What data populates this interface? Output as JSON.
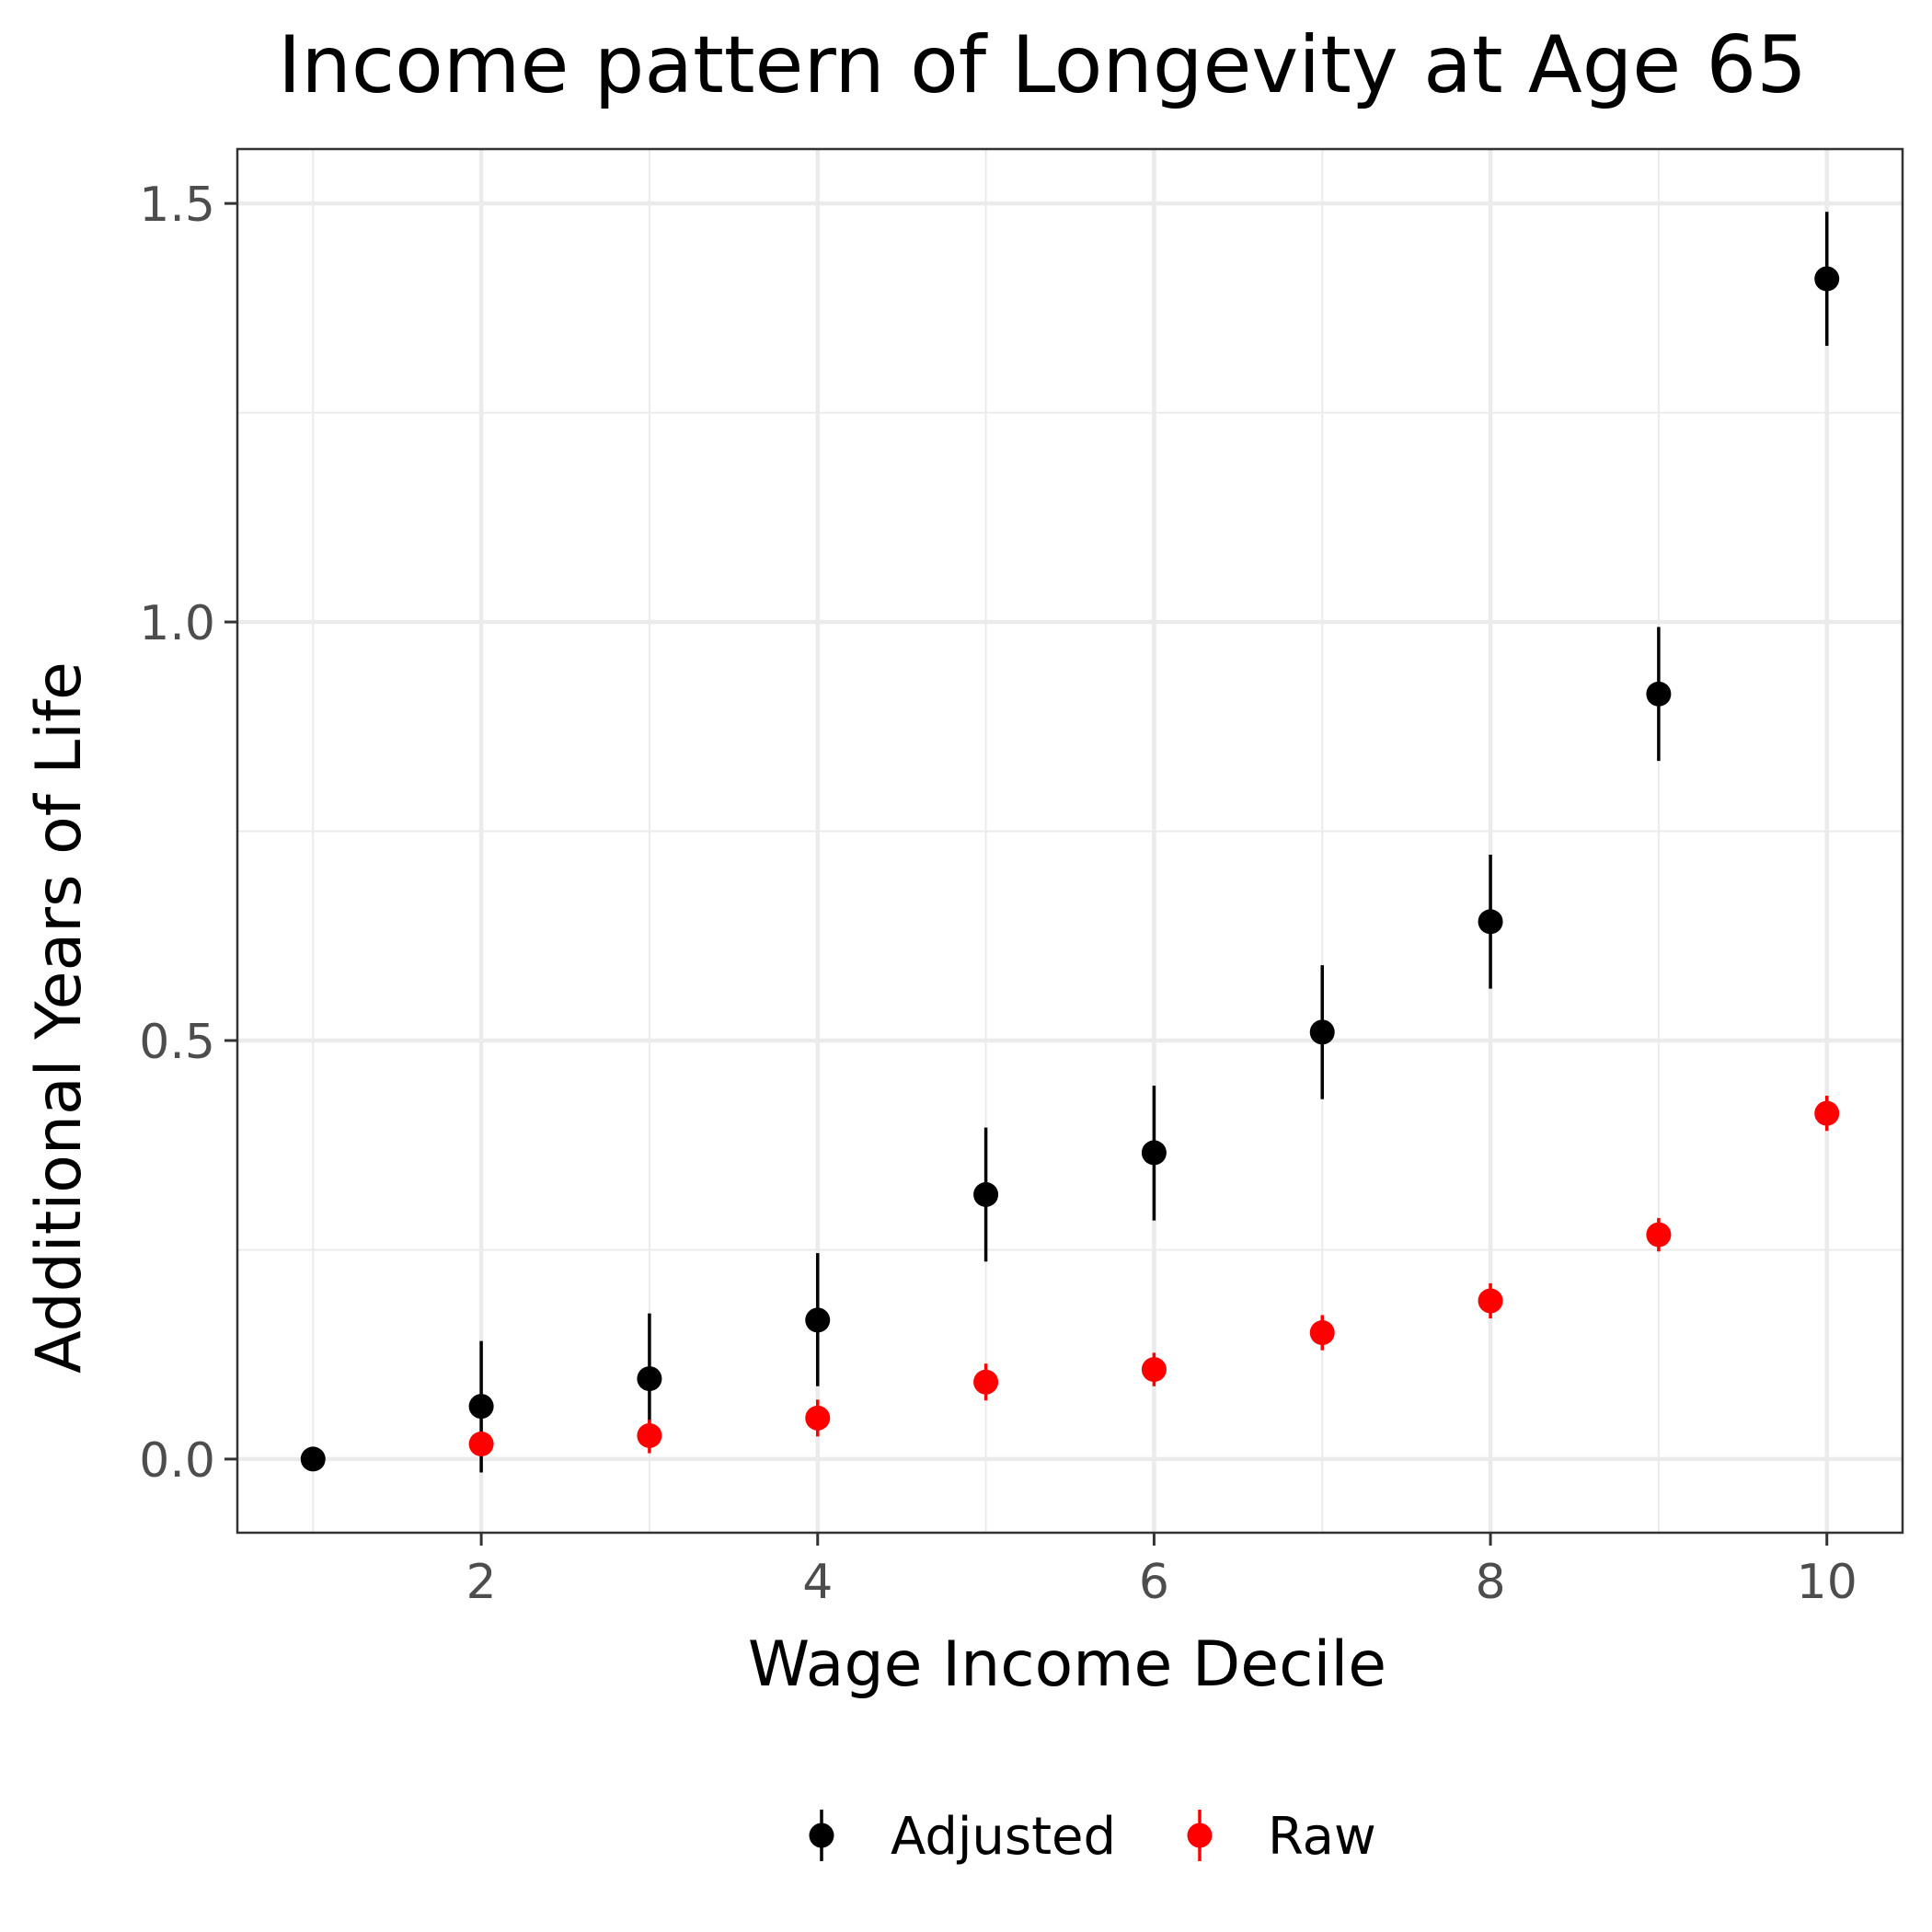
{
  "chart_data": {
    "type": "scatter",
    "title": "Income pattern of Longevity at Age 65",
    "xlabel": "Wage Income Decile",
    "ylabel": "Additional Years of Life",
    "xlim": [
      0.55,
      10.45
    ],
    "ylim": [
      -0.088,
      1.565
    ],
    "x_ticks": [
      2,
      4,
      6,
      8,
      10
    ],
    "x_tick_labels": [
      "2",
      "4",
      "6",
      "8",
      "10"
    ],
    "y_ticks": [
      0.0,
      0.5,
      1.0,
      1.5
    ],
    "y_tick_labels": [
      "0.0",
      "0.5",
      "1.0",
      "1.5"
    ],
    "grid": true,
    "legend_position": "bottom",
    "series": [
      {
        "name": "Adjusted",
        "color": "#000000",
        "points": [
          {
            "x": 1,
            "y": 0.0,
            "lo": 0.0,
            "hi": 0.0
          },
          {
            "x": 2,
            "y": 0.063,
            "lo": -0.016,
            "hi": 0.141
          },
          {
            "x": 3,
            "y": 0.096,
            "lo": 0.019,
            "hi": 0.174
          },
          {
            "x": 4,
            "y": 0.166,
            "lo": 0.087,
            "hi": 0.246
          },
          {
            "x": 5,
            "y": 0.316,
            "lo": 0.236,
            "hi": 0.396
          },
          {
            "x": 6,
            "y": 0.366,
            "lo": 0.285,
            "hi": 0.446
          },
          {
            "x": 7,
            "y": 0.51,
            "lo": 0.43,
            "hi": 0.59
          },
          {
            "x": 8,
            "y": 0.642,
            "lo": 0.562,
            "hi": 0.722
          },
          {
            "x": 9,
            "y": 0.914,
            "lo": 0.834,
            "hi": 0.994
          },
          {
            "x": 10,
            "y": 1.41,
            "lo": 1.33,
            "hi": 1.49
          }
        ]
      },
      {
        "name": "Raw",
        "color": "#ff0000",
        "points": [
          {
            "x": 2,
            "y": 0.018,
            "lo": 0.004,
            "hi": 0.032
          },
          {
            "x": 3,
            "y": 0.028,
            "lo": 0.007,
            "hi": 0.047
          },
          {
            "x": 4,
            "y": 0.049,
            "lo": 0.027,
            "hi": 0.071
          },
          {
            "x": 5,
            "y": 0.092,
            "lo": 0.07,
            "hi": 0.114
          },
          {
            "x": 6,
            "y": 0.107,
            "lo": 0.087,
            "hi": 0.127
          },
          {
            "x": 7,
            "y": 0.151,
            "lo": 0.13,
            "hi": 0.172
          },
          {
            "x": 8,
            "y": 0.189,
            "lo": 0.168,
            "hi": 0.21
          },
          {
            "x": 9,
            "y": 0.268,
            "lo": 0.248,
            "hi": 0.288
          },
          {
            "x": 10,
            "y": 0.413,
            "lo": 0.392,
            "hi": 0.434
          }
        ]
      }
    ]
  },
  "colors": {
    "panel_border": "#333333",
    "grid_major": "#ebebeb",
    "grid_minor": "#ebebeb",
    "tick_label": "#4d4d4d"
  }
}
